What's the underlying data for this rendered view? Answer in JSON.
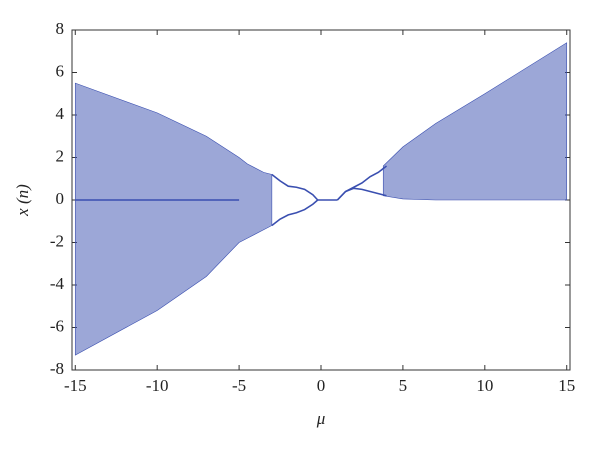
{
  "chart_data": {
    "type": "area",
    "xlabel": "μ",
    "ylabel": "x (n)",
    "xlim": [
      -15.2,
      15.2
    ],
    "ylim": [
      -8,
      8
    ],
    "xticks": [
      -15,
      -10,
      -5,
      0,
      5,
      10,
      15
    ],
    "yticks": [
      -8,
      -6,
      -4,
      -2,
      0,
      2,
      4,
      6,
      8
    ],
    "grid": false,
    "series": [
      {
        "color": "#3a4fb0",
        "x": [
          -15,
          -10,
          -7,
          -5,
          -4.5,
          -3.5,
          -3
        ],
        "values": [
          5.5,
          4.1,
          3.0,
          2.0,
          1.7,
          1.3,
          1.2
        ],
        "lower": [
          -7.3,
          -5.2,
          -3.6,
          -2.0,
          -1.8,
          -1.4,
          -1.2
        ]
      },
      {
        "color": "#3a4fb0",
        "x": [
          3.8,
          5,
          7,
          10,
          15
        ],
        "values": [
          1.6,
          2.5,
          3.6,
          5.0,
          7.4
        ],
        "lower": [
          0.2,
          0.05,
          0,
          0,
          0
        ]
      },
      {
        "color": "#3a4fb0",
        "x": [
          -15,
          -10,
          -5
        ],
        "values": [
          0,
          0,
          0
        ]
      },
      {
        "color": "#3a4fb0",
        "x": [
          -3,
          -2.5,
          -2,
          -1.5,
          -1,
          -0.5,
          -0.2
        ],
        "values": [
          1.2,
          0.9,
          0.65,
          0.6,
          0.5,
          0.25,
          0
        ]
      },
      {
        "color": "#3a4fb0",
        "x": [
          -3,
          -2.5,
          -2,
          -1.5,
          -1,
          -0.5,
          -0.2
        ],
        "values": [
          -1.2,
          -0.9,
          -0.7,
          -0.6,
          -0.45,
          -0.2,
          0
        ]
      },
      {
        "color": "#3a4fb0",
        "x": [
          -0.2,
          1
        ],
        "values": [
          0,
          0
        ]
      },
      {
        "color": "#3a4fb0",
        "x": [
          1,
          1.5,
          2,
          2.5,
          3,
          3.5,
          4
        ],
        "values": [
          0,
          0.4,
          0.6,
          0.8,
          1.1,
          1.3,
          1.6
        ]
      },
      {
        "color": "#3a4fb0",
        "x": [
          1,
          1.5,
          2,
          2.5,
          3,
          3.5,
          4
        ],
        "values": [
          0,
          0.4,
          0.55,
          0.5,
          0.4,
          0.3,
          0.2
        ]
      }
    ]
  }
}
